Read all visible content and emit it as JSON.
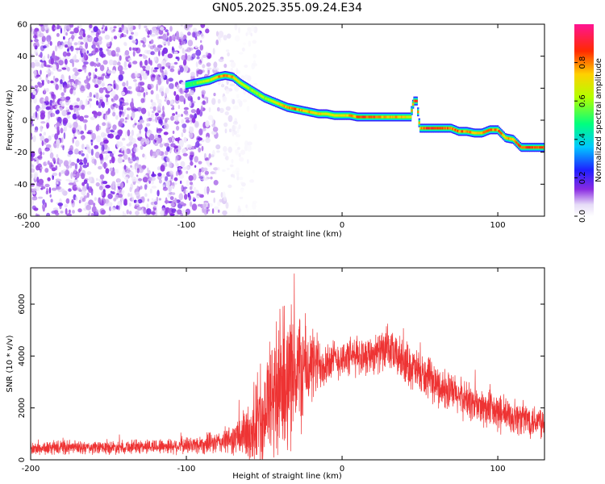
{
  "title": "GN05.2025.355.09.24.E34",
  "chart_data": [
    {
      "type": "heatmap",
      "xlabel": "Height of straight line (km)",
      "ylabel": "Frequency (Hz)",
      "xlim": [
        -200,
        130
      ],
      "ylim": [
        -60,
        60
      ],
      "x_ticks": [
        -200,
        -100,
        0,
        100
      ],
      "y_ticks": [
        -60,
        -40,
        -20,
        0,
        20,
        40,
        60
      ],
      "colorbar": {
        "label": "Normalized spectral amplitude",
        "range": [
          0,
          1
        ],
        "ticks": [
          "0.0",
          "0.2",
          "0.4",
          "0.6",
          "0.8"
        ]
      },
      "noise_region": {
        "x": [
          -200,
          -65
        ],
        "y": [
          -60,
          60
        ],
        "amplitude": "0.0-0.15"
      },
      "ridge": {
        "x": [
          -100,
          -95,
          -90,
          -85,
          -80,
          -75,
          -70,
          -65,
          -60,
          -55,
          -50,
          -45,
          -40,
          -35,
          -30,
          -25,
          -20,
          -15,
          -10,
          -5,
          0,
          5,
          10,
          15,
          20,
          25,
          30,
          35,
          40,
          44,
          46,
          48,
          50,
          52,
          55,
          60,
          65,
          70,
          75,
          80,
          85,
          90,
          95,
          100,
          105,
          110,
          115,
          120,
          125,
          130
        ],
        "y": [
          22,
          23,
          24,
          25,
          27,
          28,
          27,
          23,
          20,
          17,
          14,
          12,
          10,
          8,
          7,
          6,
          5,
          4,
          4,
          3,
          3,
          3,
          2,
          2,
          2,
          2,
          2,
          2,
          2,
          2,
          12,
          12,
          -5,
          -5,
          -5,
          -5,
          -5,
          -5,
          -7,
          -7,
          -8,
          -8,
          -6,
          -6,
          -11,
          -12,
          -17,
          -17,
          -17,
          -17
        ],
        "amplitude": [
          0.5,
          0.5,
          0.6,
          0.6,
          0.75,
          0.8,
          0.75,
          0.65,
          0.6,
          0.6,
          0.6,
          0.62,
          0.7,
          0.8,
          0.8,
          0.75,
          0.75,
          0.7,
          0.7,
          0.7,
          0.7,
          0.75,
          0.8,
          0.85,
          0.85,
          0.8,
          0.75,
          0.75,
          0.7,
          0.7,
          0.85,
          0.85,
          0.8,
          0.8,
          0.85,
          0.85,
          0.85,
          0.8,
          0.8,
          0.8,
          0.75,
          0.75,
          0.8,
          0.8,
          0.75,
          0.75,
          0.85,
          0.85,
          0.85,
          0.85
        ]
      }
    },
    {
      "type": "line",
      "xlabel": "Height of straight line (km)",
      "ylabel": "SNR (10 * v/v)",
      "xlim": [
        -200,
        130
      ],
      "ylim": [
        0,
        7400
      ],
      "x_ticks": [
        -200,
        -100,
        0,
        100
      ],
      "y_ticks": [
        0,
        2000,
        4000,
        6000
      ],
      "series": [
        {
          "color": "#ee3333",
          "x": [
            -200,
            -180,
            -160,
            -140,
            -120,
            -100,
            -80,
            -70,
            -60,
            -55,
            -50,
            -45,
            -40,
            -35,
            -30,
            -25,
            -20,
            -15,
            -10,
            -5,
            0,
            10,
            20,
            30,
            40,
            50,
            60,
            70,
            80,
            90,
            100,
            110,
            120,
            130
          ],
          "y": [
            420,
            480,
            450,
            500,
            520,
            550,
            650,
            800,
            1000,
            1400,
            2000,
            2400,
            2800,
            3200,
            3400,
            3500,
            3600,
            3700,
            3800,
            3850,
            3900,
            4000,
            4100,
            4200,
            3800,
            3300,
            2900,
            2600,
            2300,
            2000,
            1800,
            1650,
            1550,
            1500
          ],
          "noise_spread": [
            300,
            320,
            300,
            320,
            340,
            400,
            500,
            700,
            1400,
            2200,
            2800,
            3200,
            3400,
            3200,
            3000,
            2600,
            1800,
            1400,
            1100,
            900,
            900,
            900,
            900,
            900,
            1000,
            1000,
            900,
            900,
            900,
            900,
            900,
            800,
            800,
            800
          ]
        }
      ]
    }
  ]
}
